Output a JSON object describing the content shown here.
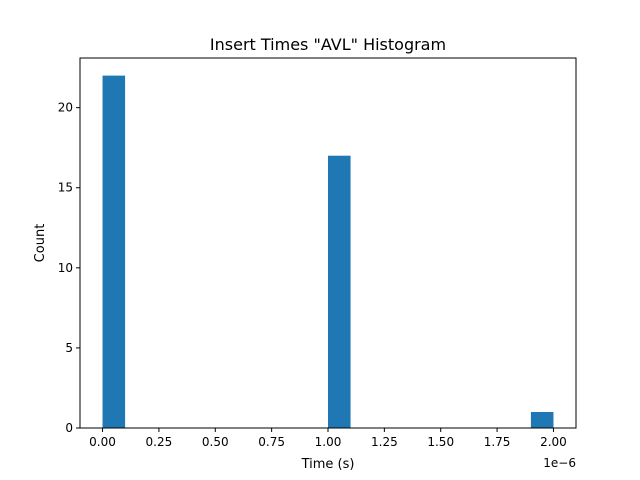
{
  "chart_data": {
    "type": "bar",
    "title": "Insert Times \"AVL\" Histogram",
    "xlabel": "Time (s)",
    "ylabel": "Count",
    "x_offset_label": "1e−6",
    "xlim": [
      -0.1,
      2.1
    ],
    "ylim": [
      0,
      23.1
    ],
    "x_ticks": [
      0.0,
      0.25,
      0.5,
      0.75,
      1.0,
      1.25,
      1.5,
      1.75,
      2.0
    ],
    "x_tick_labels": [
      "0.00",
      "0.25",
      "0.50",
      "0.75",
      "1.00",
      "1.25",
      "1.50",
      "1.75",
      "2.00"
    ],
    "y_ticks": [
      0,
      5,
      10,
      15,
      20
    ],
    "y_tick_labels": [
      "0",
      "5",
      "10",
      "15",
      "20"
    ],
    "bins": [
      {
        "x_start": 0.0,
        "x_end": 0.1,
        "count": 22
      },
      {
        "x_start": 1.0,
        "x_end": 1.1,
        "count": 17
      },
      {
        "x_start": 1.9,
        "x_end": 2.0,
        "count": 1
      }
    ],
    "bar_color": "#1f77b4",
    "grid": false,
    "legend": "none"
  }
}
